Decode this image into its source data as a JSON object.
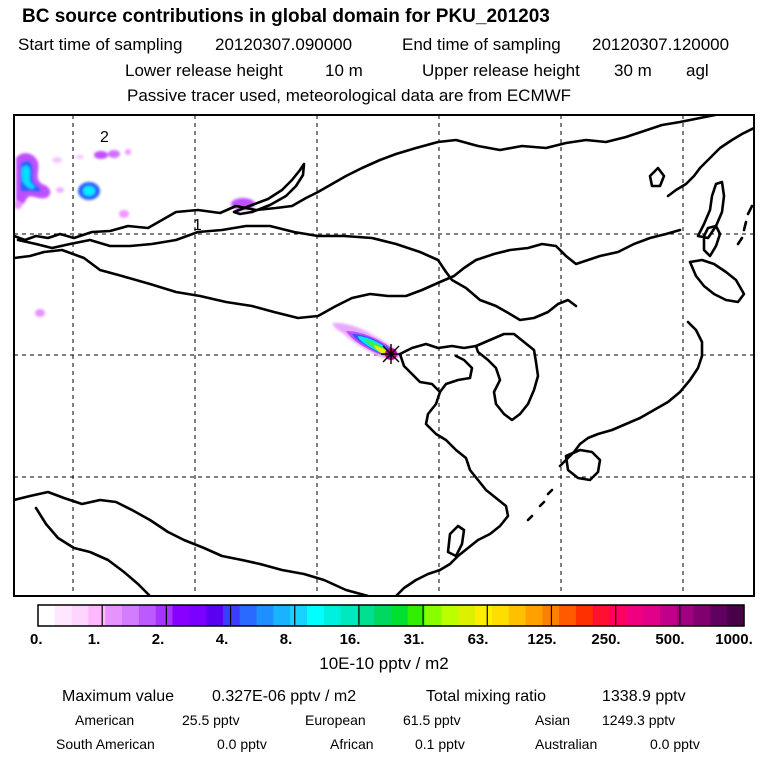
{
  "header": {
    "title": "BC  source contributions in global domain for PKU_201203",
    "start_label": "Start time of sampling",
    "start_value": "20120307.090000",
    "end_label": "End time of sampling",
    "end_value": "20120307.120000",
    "lower_label": "Lower release height",
    "lower_value": "10 m",
    "upper_label": "Upper release height",
    "upper_value": "30 m",
    "upper_unit": "agl",
    "note": "Passive tracer used, meteorological data are from ECMWF"
  },
  "map": {
    "labels": {
      "region_1": "1",
      "region_2": "2"
    },
    "colors": {
      "coast": "#000000",
      "grid": "#000000",
      "frame": "#000000"
    },
    "receptor_icon": "star-marker-icon"
  },
  "legend": {
    "ticks": [
      "0.",
      "1.",
      "2.",
      "4.",
      "8.",
      "16.",
      "31.",
      "63.",
      "125.",
      "250.",
      "500.",
      "1000."
    ],
    "colors": [
      "#ffffff",
      "#ffe8ff",
      "#ffd4ff",
      "#ffb8ff",
      "#e793ff",
      "#d27cff",
      "#bd5aff",
      "#a832ff",
      "#8800ff",
      "#7a00ff",
      "#5b00f0",
      "#3d3dff",
      "#2b6aff",
      "#1e8fff",
      "#19b3ff",
      "#18d3ff",
      "#00ffff",
      "#00f0e0",
      "#00e8c0",
      "#00e090",
      "#00d860",
      "#00e030",
      "#33ee00",
      "#88ff00",
      "#bbff00",
      "#ddf000",
      "#ffee00",
      "#ffdd00",
      "#ffc000",
      "#ffa000",
      "#ff8000",
      "#ff5a00",
      "#ff3000",
      "#ff1030",
      "#ff0060",
      "#f00080",
      "#e0008a",
      "#c00088",
      "#a00080",
      "#800070",
      "#600060",
      "#480048"
    ],
    "unit": "10E-10 pptv / m2"
  },
  "summary": {
    "max_label": "Maximum value",
    "max_value": "0.327E-06 pptv / m2",
    "total_label": "Total mixing ratio",
    "total_value": "1338.9 pptv",
    "regions": [
      {
        "name": "American",
        "value": "25.5 pptv"
      },
      {
        "name": "European",
        "value": "61.5 pptv"
      },
      {
        "name": "Asian",
        "value": "1249.3 pptv"
      },
      {
        "name": "South American",
        "value": "0.0 pptv"
      },
      {
        "name": "African",
        "value": "0.1 pptv"
      },
      {
        "name": "Australian",
        "value": "0.0 pptv"
      }
    ]
  }
}
